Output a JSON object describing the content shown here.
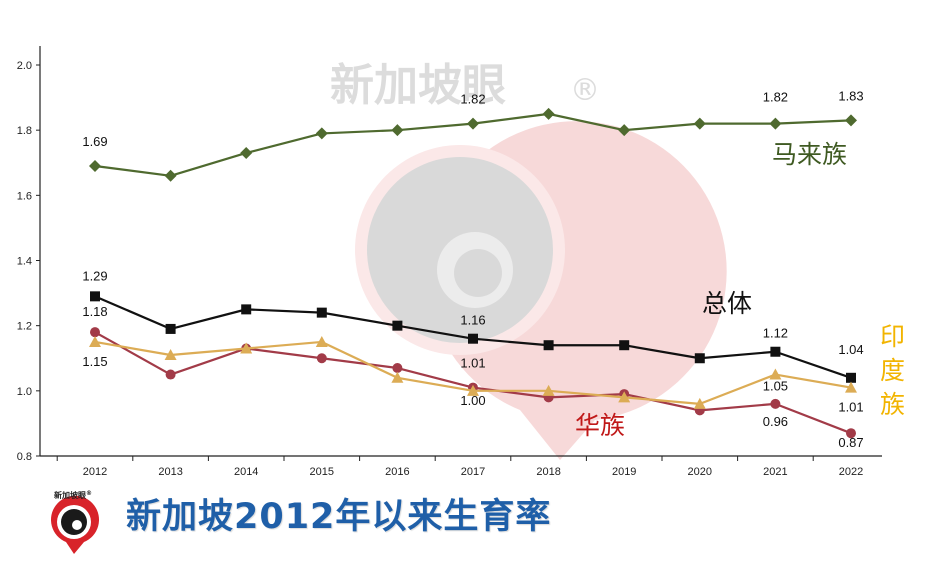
{
  "chart_data": {
    "type": "line",
    "title": "新加坡2012年以来生育率",
    "xlabel": "",
    "ylabel": "",
    "categories": [
      "2012",
      "2013",
      "2014",
      "2015",
      "2016",
      "2017",
      "2018",
      "2019",
      "2020",
      "2021",
      "2022"
    ],
    "ylim": [
      0.8,
      2.0
    ],
    "yticks": [
      "0.8",
      "1.0",
      "1.2",
      "1.4",
      "1.6",
      "1.8",
      "2.0"
    ],
    "grid": false,
    "series": [
      {
        "name": "马来族",
        "color": "#4f6a2f",
        "marker": "diamond",
        "values": [
          1.69,
          1.66,
          1.73,
          1.79,
          1.8,
          1.82,
          1.85,
          1.8,
          1.82,
          1.82,
          1.83
        ],
        "labels": {
          "0": "1.69",
          "5": "1.82",
          "9": "1.82",
          "10": "1.83"
        }
      },
      {
        "name": "总体",
        "color": "#111111",
        "marker": "square",
        "values": [
          1.29,
          1.19,
          1.25,
          1.24,
          1.2,
          1.16,
          1.14,
          1.14,
          1.1,
          1.12,
          1.04
        ],
        "labels": {
          "0": "1.29",
          "5": "1.16",
          "9": "1.12",
          "10": "1.04"
        }
      },
      {
        "name": "华族",
        "color": "#a23b48",
        "marker": "circle",
        "values": [
          1.18,
          1.05,
          1.13,
          1.1,
          1.07,
          1.01,
          0.98,
          0.99,
          0.94,
          0.96,
          0.87
        ],
        "labels": {
          "0": "1.18",
          "5": "1.01",
          "9": "0.96",
          "10": "0.87"
        }
      },
      {
        "name": "印度族",
        "color": "#dcac55",
        "marker": "triangle",
        "values": [
          1.15,
          1.11,
          1.13,
          1.15,
          1.04,
          1.0,
          1.0,
          0.98,
          0.96,
          1.05,
          1.01
        ],
        "labels": {
          "0": "1.15",
          "5": "1.00",
          "9": "1.05",
          "10": "1.01"
        }
      }
    ],
    "series_label_colors": {
      "马来族": "#3f5a22",
      "总体": "#111111",
      "华族": "#c01818",
      "印度族": "#f2b400"
    }
  },
  "watermark": {
    "text": "新加坡眼",
    "mark": "®"
  },
  "logo": {
    "text": "新加坡眼",
    "mark": "®"
  },
  "title_color": "#1f5fa8"
}
